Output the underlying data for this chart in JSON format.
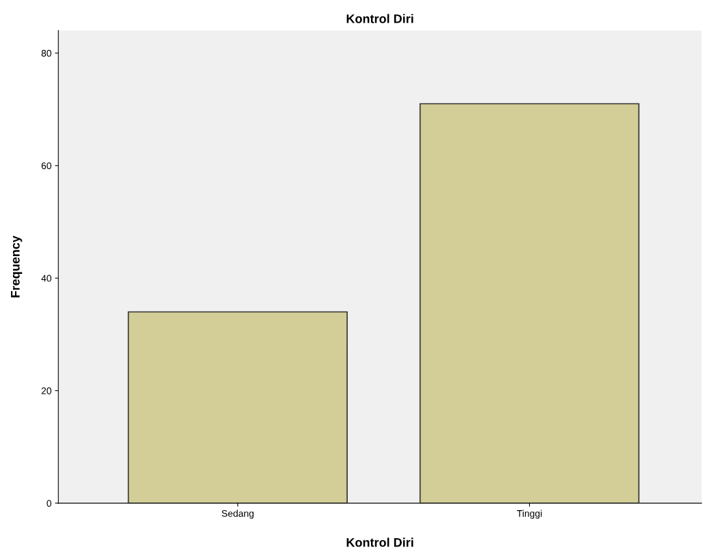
{
  "chart_data": {
    "type": "bar",
    "title": "Kontrol Diri",
    "xlabel": "Kontrol Diri",
    "ylabel": "Frequency",
    "categories": [
      "Sedang",
      "Tinggi"
    ],
    "series": [
      {
        "color": "#d3ce97",
        "values": [
          34,
          71
        ]
      }
    ],
    "ylim": [
      0,
      84
    ],
    "yticks": [
      0,
      20,
      40,
      60,
      80
    ],
    "grid": false,
    "legend": false
  }
}
